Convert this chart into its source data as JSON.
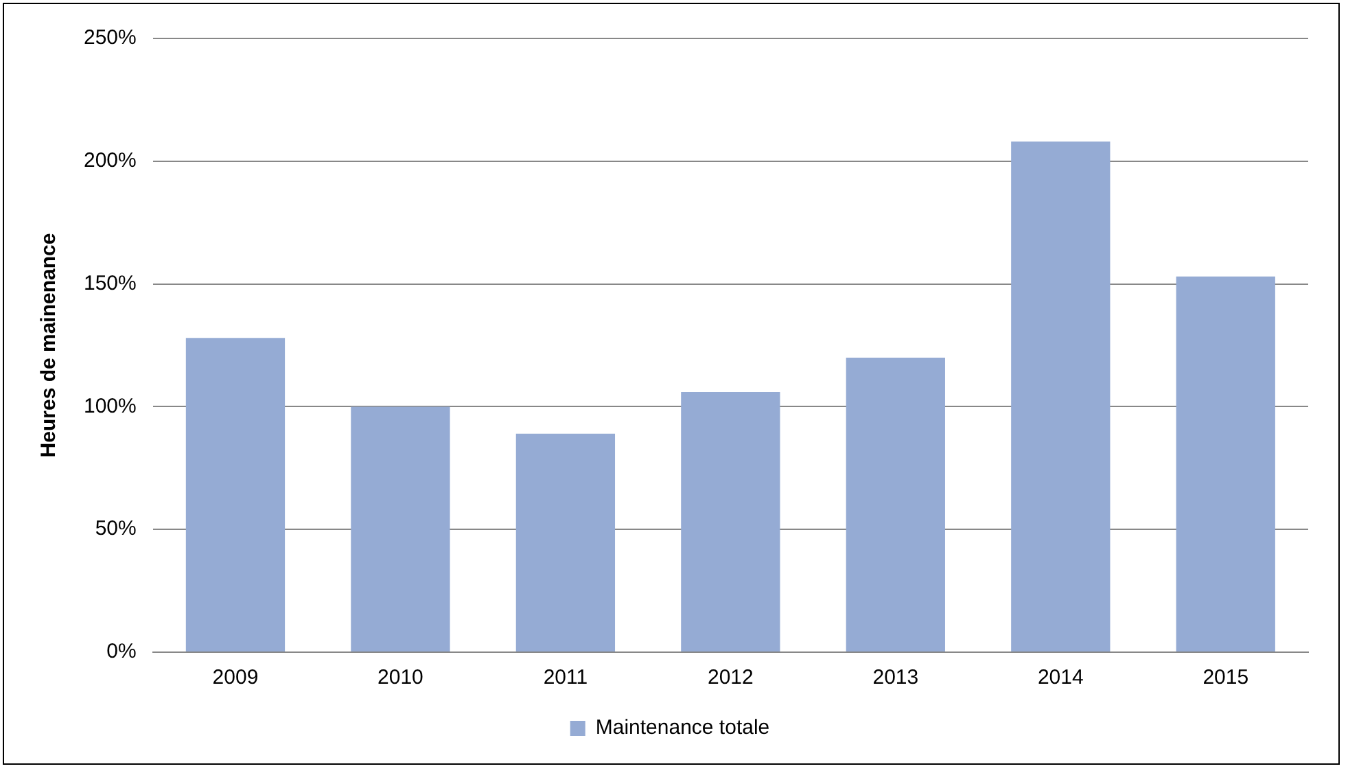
{
  "chart_data": {
    "type": "bar",
    "ylabel": "Heures de mainenance",
    "categories": [
      "2009",
      "2010",
      "2011",
      "2012",
      "2013",
      "2014",
      "2015"
    ],
    "series": [
      {
        "name": "Maintenance totale",
        "color": "#95abd4",
        "values": [
          128,
          100,
          89,
          106,
          120,
          208,
          153
        ]
      }
    ],
    "ylim": [
      0,
      250
    ],
    "yticks": [
      {
        "value": 0,
        "label": "0%"
      },
      {
        "value": 50,
        "label": "50%"
      },
      {
        "value": 100,
        "label": "100%"
      },
      {
        "value": 150,
        "label": "150%"
      },
      {
        "value": 200,
        "label": "200%"
      },
      {
        "value": 250,
        "label": "250%"
      }
    ],
    "grid": "y",
    "legend": "bottom"
  }
}
